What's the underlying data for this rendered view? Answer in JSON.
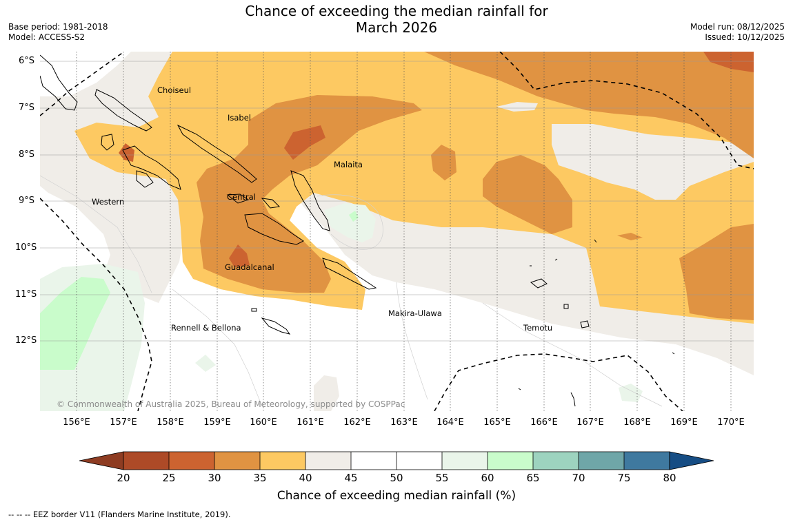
{
  "header": {
    "title_line1": "Chance of exceeding the median rainfall for",
    "title_line2": "March 2026",
    "base_period": "Base period: 1981-2018",
    "model": "Model: ACCESS-S2",
    "model_run": "Model run: 08/12/2025",
    "issued": "Issued: 10/12/2025"
  },
  "map": {
    "lat_labels": [
      "6°S",
      "7°S",
      "8°S",
      "9°S",
      "10°S",
      "11°S",
      "12°S"
    ],
    "lon_labels": [
      "156°E",
      "157°E",
      "158°E",
      "159°E",
      "160°E",
      "161°E",
      "162°E",
      "163°E",
      "164°E",
      "165°E",
      "166°E",
      "167°E",
      "168°E",
      "169°E",
      "170°E"
    ],
    "regions": [
      "Choiseul",
      "Isabel",
      "Malaita",
      "Western",
      "Central",
      "Guadalcanal",
      "Makira-Ulawa",
      "Rennell & Bellona",
      "Temotu"
    ],
    "copyright": "© Commonwealth of Australia 2025, Bureau of Meteorology, supported by COSPPac"
  },
  "colorbar": {
    "ticks": [
      "20",
      "25",
      "30",
      "35",
      "40",
      "45",
      "50",
      "55",
      "60",
      "65",
      "70",
      "75",
      "80"
    ],
    "colors": [
      "#ad4a27",
      "#cc6330",
      "#e09342",
      "#fdc962",
      "#f0ede8",
      "#ffffff",
      "#ffffff",
      "#eaf5ea",
      "#c9fccb",
      "#9dd3bf",
      "#6fa6a8",
      "#3f799f"
    ],
    "under_color": "#8e3c22",
    "over_color": "#164d84",
    "label": "Chance of exceeding median rainfall (%)"
  },
  "footer": {
    "eez_note": "--  --  -- EEZ border V11 (Flanders Marine Institute, 2019)."
  }
}
